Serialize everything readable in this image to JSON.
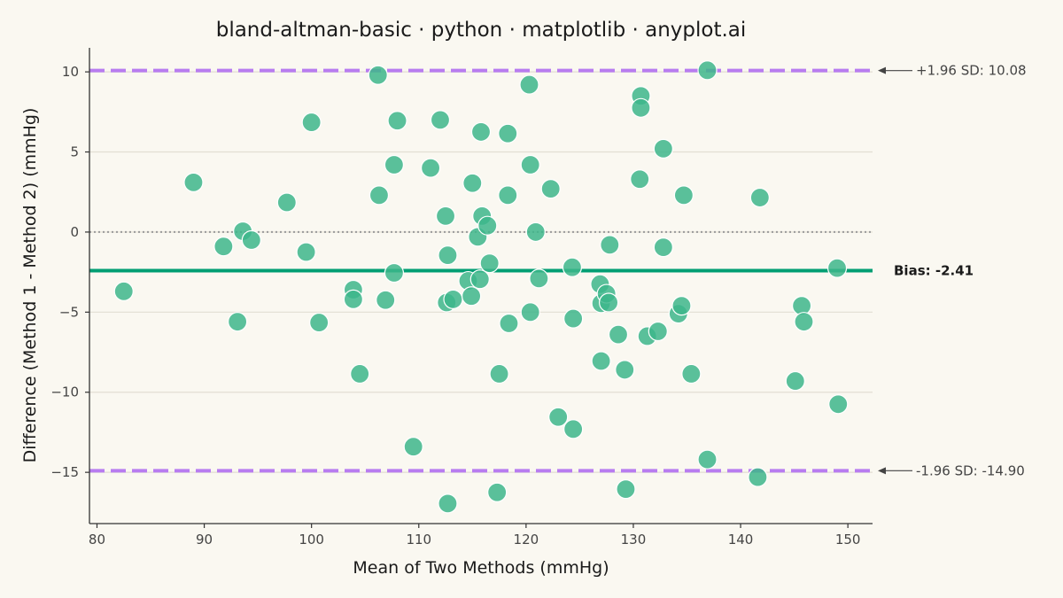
{
  "chart_data": {
    "type": "scatter",
    "title": "bland-altman-basic · python · matplotlib · anyplot.ai",
    "xlabel": "Mean of Two Methods (mmHg)",
    "ylabel": "Difference (Method 1 - Method 2) (mmHg)",
    "xlim": [
      79.3,
      152.3
    ],
    "ylim": [
      -18.2,
      11.5
    ],
    "xticks": [
      80,
      90,
      100,
      110,
      120,
      130,
      140,
      150
    ],
    "yticks": [
      -15,
      -10,
      -5,
      0,
      5,
      10
    ],
    "xtick_labels": [
      "80",
      "90",
      "100",
      "110",
      "120",
      "130",
      "140",
      "150"
    ],
    "ytick_labels": [
      "−15",
      "−10",
      "−5",
      "0",
      "5",
      "10"
    ],
    "grid": "horizontal",
    "bias": -2.41,
    "upper_loa": 10.08,
    "lower_loa": -14.9,
    "bias_label": "Bias: -2.41",
    "upper_label": "+1.96 SD: 10.08",
    "lower_label": "-1.96 SD: -14.90",
    "colors": {
      "points": "#3DB68B",
      "bias_line": "#009E73",
      "loa_line": "#B87CF0",
      "zero_line": "#9A9A9A",
      "grid": "#E2DED3",
      "background": "#FAF8F1"
    },
    "points": [
      [
        82.5,
        -3.7
      ],
      [
        89.0,
        3.1
      ],
      [
        91.8,
        -0.9
      ],
      [
        93.1,
        -5.6
      ],
      [
        93.6,
        0.05
      ],
      [
        94.4,
        -0.5
      ],
      [
        97.7,
        1.85
      ],
      [
        99.5,
        -1.25
      ],
      [
        100.0,
        6.85
      ],
      [
        100.7,
        -5.65
      ],
      [
        103.9,
        -3.6
      ],
      [
        103.9,
        -4.2
      ],
      [
        104.5,
        -8.85
      ],
      [
        106.2,
        9.8
      ],
      [
        106.3,
        2.3
      ],
      [
        106.9,
        -4.25
      ],
      [
        107.7,
        4.2
      ],
      [
        107.7,
        -2.55
      ],
      [
        108.0,
        6.95
      ],
      [
        111.1,
        4.0
      ],
      [
        112.0,
        7.0
      ],
      [
        112.5,
        1.0
      ],
      [
        112.6,
        -4.4
      ],
      [
        112.7,
        -1.45
      ],
      [
        112.7,
        -16.95
      ],
      [
        113.2,
        -4.2
      ],
      [
        114.6,
        -3.05
      ],
      [
        114.9,
        -4.0
      ],
      [
        115.0,
        3.05
      ],
      [
        115.5,
        -0.3
      ],
      [
        115.7,
        -2.95
      ],
      [
        115.8,
        6.25
      ],
      [
        115.9,
        1.0
      ],
      [
        116.4,
        0.4
      ],
      [
        116.6,
        -1.95
      ],
      [
        117.3,
        -16.25
      ],
      [
        117.5,
        -8.85
      ],
      [
        118.3,
        2.3
      ],
      [
        118.3,
        6.15
      ],
      [
        118.4,
        -5.7
      ],
      [
        109.5,
        -13.4
      ],
      [
        120.3,
        9.2
      ],
      [
        120.4,
        4.2
      ],
      [
        120.4,
        -5.0
      ],
      [
        120.9,
        0.0
      ],
      [
        121.2,
        -2.9
      ],
      [
        122.3,
        2.7
      ],
      [
        123.0,
        -11.55
      ],
      [
        124.3,
        -2.2
      ],
      [
        124.4,
        -12.3
      ],
      [
        124.4,
        -5.4
      ],
      [
        126.9,
        -3.25
      ],
      [
        127.0,
        -4.45
      ],
      [
        127.0,
        -8.05
      ],
      [
        127.5,
        -3.85
      ],
      [
        127.7,
        -4.4
      ],
      [
        127.8,
        -0.8
      ],
      [
        128.6,
        -6.4
      ],
      [
        129.2,
        -8.6
      ],
      [
        129.3,
        -16.05
      ],
      [
        130.7,
        8.5
      ],
      [
        130.7,
        7.75
      ],
      [
        130.6,
        3.3
      ],
      [
        131.3,
        -6.5
      ],
      [
        132.3,
        -6.2
      ],
      [
        132.8,
        5.2
      ],
      [
        132.8,
        -0.95
      ],
      [
        134.2,
        -5.1
      ],
      [
        134.5,
        -4.6
      ],
      [
        134.7,
        2.3
      ],
      [
        135.4,
        -8.85
      ],
      [
        136.9,
        10.1
      ],
      [
        136.9,
        -14.2
      ],
      [
        141.6,
        -15.3
      ],
      [
        141.8,
        2.15
      ],
      [
        145.1,
        -9.3
      ],
      [
        145.7,
        -4.6
      ],
      [
        145.9,
        -5.6
      ],
      [
        149.0,
        -2.25
      ],
      [
        149.1,
        -10.75
      ]
    ]
  }
}
